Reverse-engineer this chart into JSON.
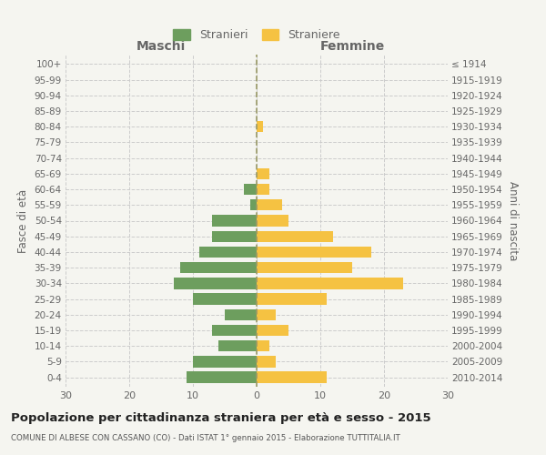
{
  "age_groups": [
    "0-4",
    "5-9",
    "10-14",
    "15-19",
    "20-24",
    "25-29",
    "30-34",
    "35-39",
    "40-44",
    "45-49",
    "50-54",
    "55-59",
    "60-64",
    "65-69",
    "70-74",
    "75-79",
    "80-84",
    "85-89",
    "90-94",
    "95-99",
    "100+"
  ],
  "birth_years": [
    "2010-2014",
    "2005-2009",
    "2000-2004",
    "1995-1999",
    "1990-1994",
    "1985-1989",
    "1980-1984",
    "1975-1979",
    "1970-1974",
    "1965-1969",
    "1960-1964",
    "1955-1959",
    "1950-1954",
    "1945-1949",
    "1940-1944",
    "1935-1939",
    "1930-1934",
    "1925-1929",
    "1920-1924",
    "1915-1919",
    "≤ 1914"
  ],
  "males": [
    11,
    10,
    6,
    7,
    5,
    10,
    13,
    12,
    9,
    7,
    7,
    1,
    2,
    0,
    0,
    0,
    0,
    0,
    0,
    0,
    0
  ],
  "females": [
    11,
    3,
    2,
    5,
    3,
    11,
    23,
    15,
    18,
    12,
    5,
    4,
    2,
    2,
    0,
    0,
    1,
    0,
    0,
    0,
    0
  ],
  "male_color": "#6d9e5e",
  "female_color": "#f5c242",
  "background_color": "#f5f5f0",
  "grid_color": "#cccccc",
  "center_line_color": "#999966",
  "title": "Popolazione per cittadinanza straniera per età e sesso - 2015",
  "subtitle": "COMUNE DI ALBESE CON CASSANO (CO) - Dati ISTAT 1° gennaio 2015 - Elaborazione TUTTITALIA.IT",
  "xlabel_left": "Maschi",
  "xlabel_right": "Femmine",
  "ylabel_left": "Fasce di età",
  "ylabel_right": "Anni di nascita",
  "legend_male": "Stranieri",
  "legend_female": "Straniere",
  "xlim": 30,
  "label_color": "#666666"
}
